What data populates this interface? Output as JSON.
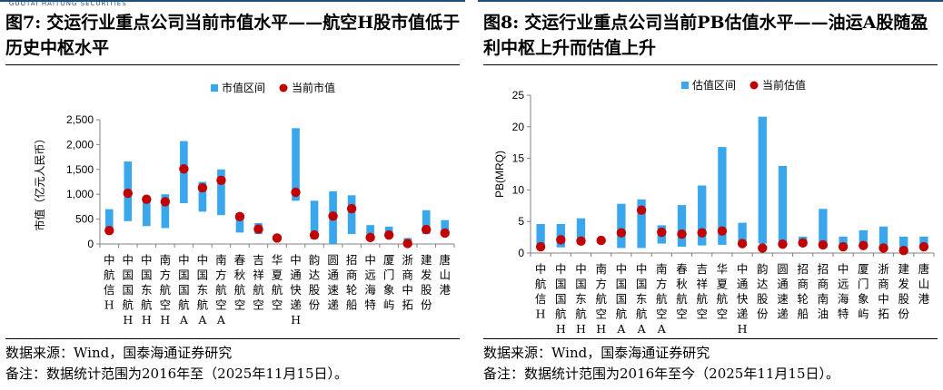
{
  "colors": {
    "bar": "#3aa7ec",
    "dot": "#c00000",
    "axis": "#808080",
    "brand": "#1f4e79"
  },
  "header": {
    "brand_text": "GUOTAI HAITONG SECURITIES"
  },
  "left": {
    "fig_label": "图7:",
    "title": "交运行业重点公司当前市值水平——航空H股市值低于历史中枢水平",
    "source": "数据来源：Wind，国泰海通证券研究",
    "note": "备注：数据统计范围为2016年至（2025年11月15日）。"
  },
  "right": {
    "fig_label": "图8:",
    "title": "交运行业重点公司当前PB估值水平——油运A股随盈利中枢上升而估值上升",
    "source": "数据来源：Wind，国泰海通证券研究",
    "note": "备注：数据统计范围为2016年至今（2025年11月15日）。"
  },
  "chart_data": [
    {
      "type": "bar",
      "subtype": "floating-range-with-dot",
      "ylabel": "市值（亿元人民币）",
      "ylim": [
        0,
        2500
      ],
      "yticks": [
        "0",
        "500",
        "1,000",
        "1,500",
        "2,000",
        "2,500"
      ],
      "legend": [
        "市值区间",
        "当前市值"
      ],
      "legend_position": "top-center",
      "grid": false,
      "categories": [
        "中航信H",
        "中国国航H",
        "中国东航H",
        "南方航空H",
        "中国国航A",
        "中国东航A",
        "南方航空A",
        "春秋航空",
        "吉祥航空",
        "华夏航空",
        "中通快递H",
        "韵达股份",
        "圆通速递",
        "招商轮船",
        "中远海特",
        "厦门象屿",
        "浙商中拓",
        "建发股份",
        "唐山港"
      ],
      "range_low": [
        250,
        460,
        360,
        320,
        820,
        650,
        580,
        230,
        200,
        100,
        870,
        100,
        0,
        200,
        100,
        130,
        0,
        200,
        200
      ],
      "range_high": [
        700,
        1660,
        940,
        1000,
        2070,
        1250,
        1500,
        620,
        420,
        180,
        2330,
        870,
        1060,
        980,
        380,
        350,
        120,
        680,
        480
      ],
      "current": [
        270,
        1020,
        900,
        850,
        1510,
        1130,
        1280,
        550,
        300,
        120,
        1040,
        180,
        560,
        710,
        130,
        180,
        10,
        290,
        220
      ]
    },
    {
      "type": "bar",
      "subtype": "floating-range-with-dot",
      "ylabel": "PB(MRQ)",
      "ylim": [
        0,
        25
      ],
      "yticks": [
        "0",
        "5",
        "10",
        "15",
        "20",
        "25"
      ],
      "legend": [
        "估值区间",
        "当前估值"
      ],
      "legend_position": "top-center",
      "grid": false,
      "categories": [
        "中航信H",
        "中国国航H",
        "中国东航H",
        "南方航空H",
        "中国国航A",
        "中国东航A",
        "南方航空A",
        "春秋航空",
        "吉祥航空",
        "华夏航空",
        "中通快递H",
        "韵达股份",
        "圆通速递",
        "招商轮船",
        "招商南油",
        "中远海特",
        "厦门象屿",
        "浙商中拓",
        "建发股份",
        "唐山港"
      ],
      "range_low": [
        1.0,
        0.9,
        1.4,
        1.6,
        0.8,
        0.8,
        1.5,
        1.0,
        1.2,
        1.3,
        1.5,
        1.5,
        1.5,
        1.2,
        0.8,
        0.8,
        0.9,
        0.6,
        0.6,
        0.7
      ],
      "range_high": [
        4.6,
        4.6,
        5.5,
        2.3,
        7.8,
        8.5,
        4.4,
        7.6,
        10.7,
        16.8,
        4.8,
        21.6,
        13.8,
        2.6,
        7.0,
        2.6,
        3.6,
        4.2,
        2.6,
        2.6
      ],
      "current": [
        1.0,
        2.1,
        1.9,
        2.0,
        3.2,
        6.8,
        3.3,
        3.0,
        3.2,
        3.5,
        1.5,
        0.8,
        1.4,
        1.6,
        1.3,
        1.0,
        1.2,
        0.8,
        0.4,
        1.0
      ]
    }
  ]
}
